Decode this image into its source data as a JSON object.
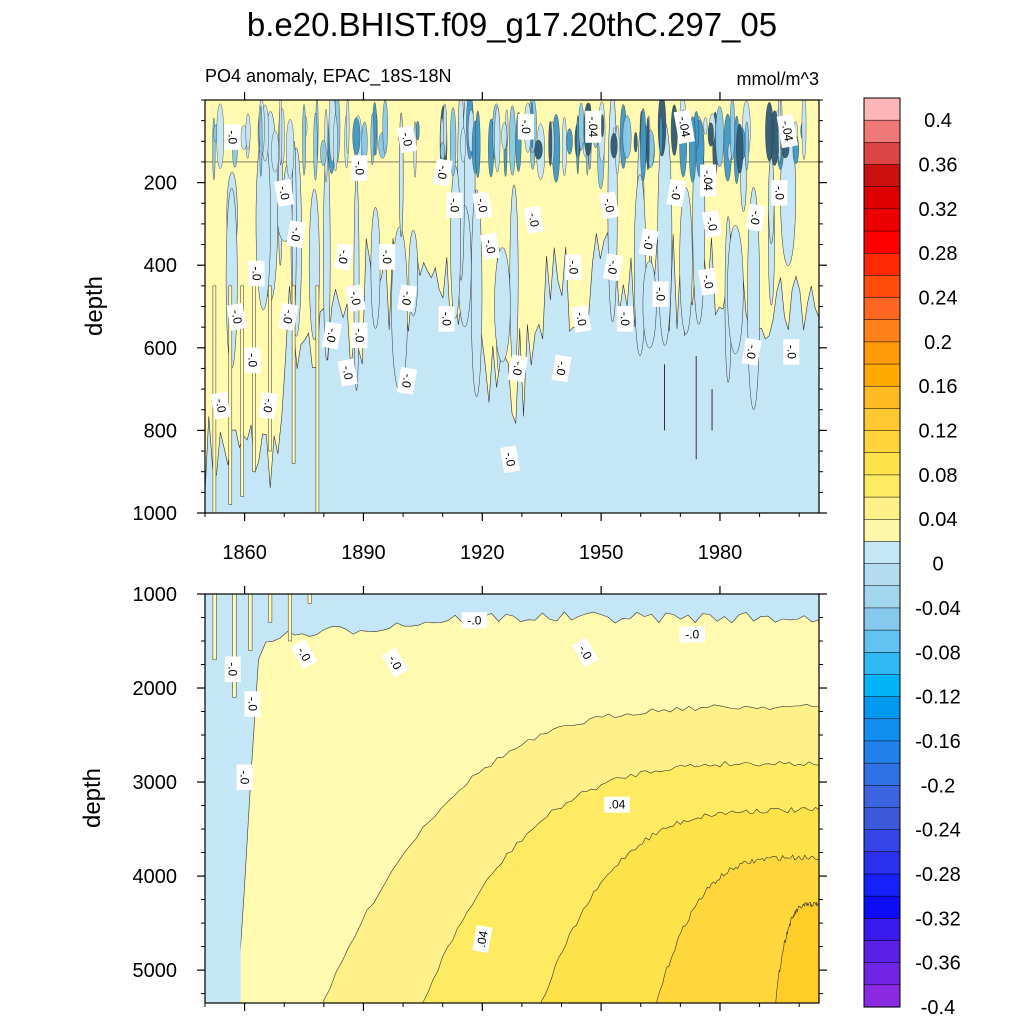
{
  "chart_data": {
    "type": "heatmap",
    "title": "b.e20.BHIST.f09_g17.20thC.297_05",
    "subtitle_left": "PO4 anomaly, EPAC_18S-18N",
    "subtitle_right": "mmol/m^3",
    "xaxis": {
      "range": [
        1850,
        2005
      ],
      "ticks": [
        1860,
        1890,
        1920,
        1950,
        1980
      ],
      "tick_labels": [
        "1860",
        "1890",
        "1920",
        "1950",
        "1980"
      ]
    },
    "panels": [
      {
        "name": "upper",
        "ylabel": "depth",
        "ylim": [
          0,
          1000
        ],
        "y_inverted": true,
        "yticks": [
          200,
          400,
          600,
          800,
          1000
        ],
        "ytick_labels": [
          "200",
          "400",
          "600",
          "800",
          "1000"
        ],
        "contour_labels": [
          {
            "text": "-.0",
            "x": 1857,
            "y": 90
          },
          {
            "text": "-.0",
            "x": 1870,
            "y": 225
          },
          {
            "text": "-.0",
            "x": 1873,
            "y": 325
          },
          {
            "text": "-.0",
            "x": 1863,
            "y": 420
          },
          {
            "text": "-.0",
            "x": 1858,
            "y": 525
          },
          {
            "text": "-.0",
            "x": 1871,
            "y": 525
          },
          {
            "text": "-.0",
            "x": 1862,
            "y": 630
          },
          {
            "text": "-.0",
            "x": 1854,
            "y": 740
          },
          {
            "text": "-.0",
            "x": 1866,
            "y": 740
          },
          {
            "text": "-.0",
            "x": 1889,
            "y": 165
          },
          {
            "text": "-.0",
            "x": 1901,
            "y": 95
          },
          {
            "text": "-.0",
            "x": 1910,
            "y": 175
          },
          {
            "text": "-.0",
            "x": 1913,
            "y": 255
          },
          {
            "text": "-.0",
            "x": 1920,
            "y": 255
          },
          {
            "text": "-.0",
            "x": 1885,
            "y": 380
          },
          {
            "text": "-.0",
            "x": 1896,
            "y": 380
          },
          {
            "text": "-.0",
            "x": 1888,
            "y": 480
          },
          {
            "text": "-.0",
            "x": 1882,
            "y": 570
          },
          {
            "text": "-.0",
            "x": 1889,
            "y": 570
          },
          {
            "text": "-.0",
            "x": 1886,
            "y": 660
          },
          {
            "text": "-.0",
            "x": 1901,
            "y": 480
          },
          {
            "text": "-.0",
            "x": 1911,
            "y": 530
          },
          {
            "text": "-.0",
            "x": 1922,
            "y": 355
          },
          {
            "text": "-.0",
            "x": 1901,
            "y": 680
          },
          {
            "text": "-.0",
            "x": 1931,
            "y": 65
          },
          {
            "text": "-.0",
            "x": 1933,
            "y": 290
          },
          {
            "text": "-.0",
            "x": 1929,
            "y": 650
          },
          {
            "text": "-.0",
            "x": 1943,
            "y": 405
          },
          {
            "text": "-.0",
            "x": 1945,
            "y": 530
          },
          {
            "text": "-.0",
            "x": 1940,
            "y": 650
          },
          {
            "text": "-.04",
            "x": 1948,
            "y": 65
          },
          {
            "text": "-.0",
            "x": 1952,
            "y": 255
          },
          {
            "text": "-.0",
            "x": 1953,
            "y": 405
          },
          {
            "text": "-.0",
            "x": 1956,
            "y": 530
          },
          {
            "text": "-.04",
            "x": 1971,
            "y": 65
          },
          {
            "text": "-.0",
            "x": 1969,
            "y": 225
          },
          {
            "text": "-.04",
            "x": 1977,
            "y": 195
          },
          {
            "text": "-.0",
            "x": 1978,
            "y": 300
          },
          {
            "text": "-.0",
            "x": 1962,
            "y": 345
          },
          {
            "text": "-.0",
            "x": 1965,
            "y": 470
          },
          {
            "text": "-.0",
            "x": 1977,
            "y": 440
          },
          {
            "text": "-.0",
            "x": 1989,
            "y": 285
          },
          {
            "text": "-.0",
            "x": 1995,
            "y": 225
          },
          {
            "text": "-.04",
            "x": 1997,
            "y": 75
          },
          {
            "text": "-.0",
            "x": 1988,
            "y": 610
          },
          {
            "text": "-.0",
            "x": 1998,
            "y": 610
          },
          {
            "text": "-.0",
            "x": 1927,
            "y": 870
          }
        ]
      },
      {
        "name": "lower",
        "ylabel": "depth",
        "ylim": [
          1000,
          5350
        ],
        "y_inverted": true,
        "yticks": [
          1000,
          2000,
          3000,
          4000,
          5000
        ],
        "ytick_labels": [
          "1000",
          "2000",
          "3000",
          "4000",
          "5000"
        ],
        "contour_labels": [
          {
            "text": "-.0",
            "x": 1857,
            "y": 1800
          },
          {
            "text": "-.0",
            "x": 1862,
            "y": 2170
          },
          {
            "text": "-.0",
            "x": 1860,
            "y": 2950
          },
          {
            "text": "-.0",
            "x": 1875,
            "y": 1640
          },
          {
            "text": "-.0",
            "x": 1898,
            "y": 1730
          },
          {
            "text": "-.0",
            "x": 1918,
            "y": 1280
          },
          {
            "text": "-.0",
            "x": 1946,
            "y": 1620
          },
          {
            "text": "-.0",
            "x": 1973,
            "y": 1430
          },
          {
            "text": ".04",
            "x": 1954,
            "y": 3240
          },
          {
            "text": ".04",
            "x": 1920,
            "y": 4670
          }
        ]
      }
    ],
    "colorbar": {
      "levels": [
        0.4,
        0.36,
        0.32,
        0.28,
        0.24,
        0.2,
        0.16,
        0.12,
        0.08,
        0.04,
        0,
        -0.04,
        -0.08,
        -0.12,
        -0.16,
        -0.2,
        -0.24,
        -0.28,
        -0.32,
        -0.36,
        -0.4
      ],
      "labels": [
        "0.4",
        "0.36",
        "0.32",
        "0.28",
        "0.24",
        "0.2",
        "0.16",
        "0.12",
        "0.08",
        "0.04",
        "0",
        "-0.04",
        "-0.08",
        "-0.12",
        "-0.16",
        "-0.2",
        "-0.24",
        "-0.28",
        "-0.32",
        "-0.36",
        "-0.4"
      ],
      "colors_top_to_bottom": [
        "#ffb6b6",
        "#f07878",
        "#dc4545",
        "#cc1010",
        "#dd0000",
        "#ee0000",
        "#ff0000",
        "#ff2a00",
        "#ff4c0a",
        "#ff6622",
        "#ff8218",
        "#ff9a08",
        "#ffaa00",
        "#ffbb22",
        "#ffc830",
        "#ffd43a",
        "#ffe14a",
        "#ffea62",
        "#fff088",
        "#fff7a8",
        "#c5e6f6",
        "#b4ddf2",
        "#a2d5ee",
        "#86c9ec",
        "#62c2f2",
        "#30baf3",
        "#00b5f5",
        "#0099ef",
        "#118ff0",
        "#2282ec",
        "#2f72e6",
        "#3a64e0",
        "#3c58db",
        "#3545e8",
        "#2a30ee",
        "#1620f8",
        "#0e0cf6",
        "#3a18f0",
        "#5a20e8",
        "#7024e4",
        "#8a2be2"
      ]
    },
    "field_colors": {
      "zero_minus": "#c5e6f6",
      "plus_1": "#fffab0",
      "plus_2": "#fff08a",
      "plus_3": "#ffea62",
      "plus_4": "#ffe14a",
      "plus_5": "#ffd63c",
      "plus_6": "#ffcc28",
      "neg_1": "#86c9ec",
      "neg_2": "#3f98c8",
      "neg_3": "#2e5a74"
    }
  }
}
